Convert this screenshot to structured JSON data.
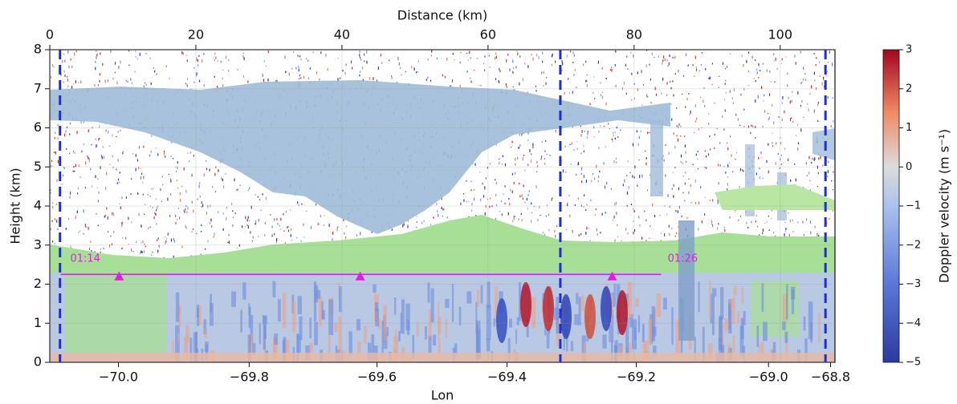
{
  "chart_data": {
    "type": "cross-section",
    "xlabel": "Distance (km)",
    "x2label": "Lon",
    "ylabel": "Height (km)",
    "xlim": [
      0,
      107.5
    ],
    "xticks": [
      0,
      20,
      40,
      60,
      80,
      100
    ],
    "ylim": [
      0,
      8
    ],
    "yticks": [
      0,
      1,
      2,
      3,
      4,
      5,
      6,
      7,
      8
    ],
    "lon_ticks": [
      {
        "value": -70.0,
        "label": "−70.0",
        "distance": 9.4
      },
      {
        "value": -69.8,
        "label": "−69.8",
        "distance": 27.3
      },
      {
        "value": -69.6,
        "label": "−69.6",
        "distance": 44.8
      },
      {
        "value": -69.4,
        "label": "−69.4",
        "distance": 62.6
      },
      {
        "value": -69.2,
        "label": "−69.2",
        "distance": 80.3
      },
      {
        "value": -69.0,
        "label": "−69.0",
        "distance": 98.4
      },
      {
        "value": -68.8,
        "label": "−68.8",
        "distance": 106.9
      }
    ],
    "colorbar": {
      "label": "Doppler velocity (m s⁻¹)",
      "lim": [
        -5,
        3
      ],
      "ticks": [
        {
          "value": -5,
          "label": "−5"
        },
        {
          "value": -4,
          "label": "−4"
        },
        {
          "value": -3,
          "label": "−3"
        },
        {
          "value": -2,
          "label": "−2"
        },
        {
          "value": -1,
          "label": "−1"
        },
        0,
        1,
        2,
        3
      ]
    },
    "dashed_lines": {
      "x": [
        1.4,
        69.9,
        106.2
      ],
      "color": "#1a2fd6"
    },
    "flight_track": {
      "x": [
        1.5,
        83.7
      ],
      "y": [
        2.25,
        2.25
      ],
      "color": "#e01ee0"
    },
    "markers": {
      "x": [
        9.5,
        42.5,
        77.0
      ],
      "y": [
        2.2,
        2.2,
        2.2
      ],
      "color": "#e01ee0"
    },
    "annotations": [
      {
        "text": "01:14",
        "x": 2.8,
        "y": 2.65
      },
      {
        "text": "01:26",
        "x": 84.6,
        "y": 2.65
      }
    ]
  }
}
